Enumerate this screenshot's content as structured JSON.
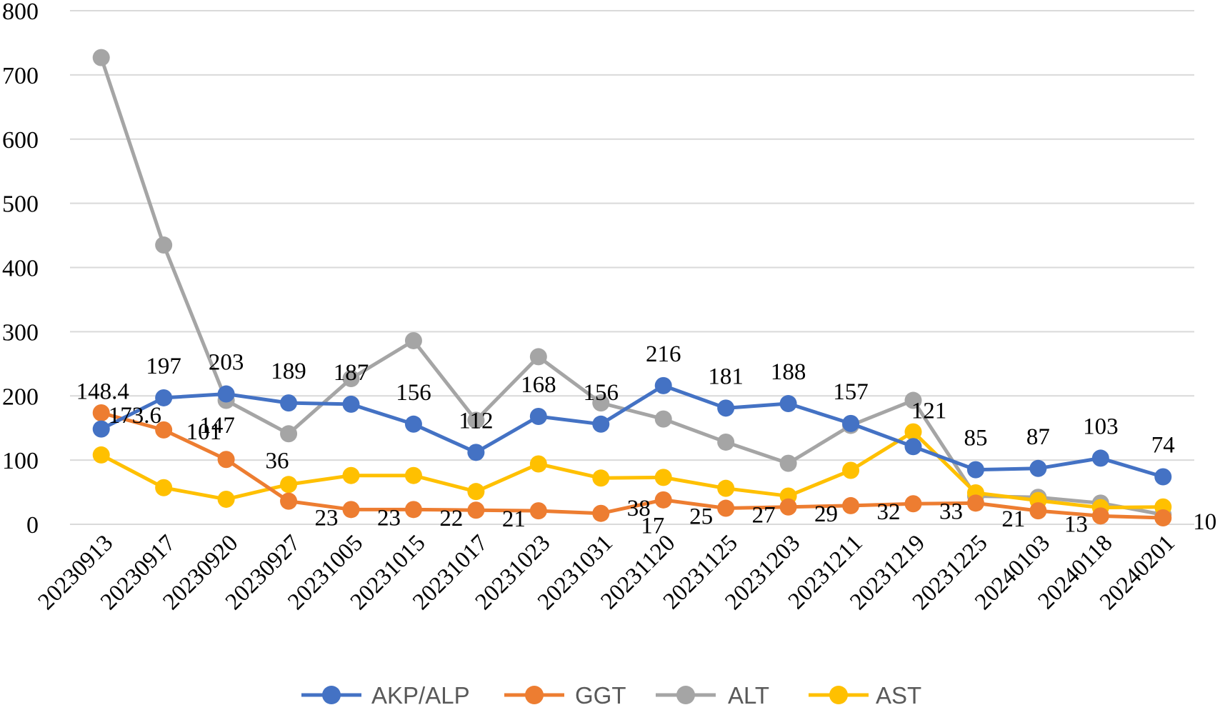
{
  "chart_data": {
    "type": "line",
    "title": "",
    "xlabel": "",
    "ylabel": "",
    "ylim": [
      0,
      800
    ],
    "yticks": [
      0,
      100,
      200,
      300,
      400,
      500,
      600,
      700,
      800
    ],
    "ytick_labels": [
      "0",
      "100",
      "200",
      "300",
      "400",
      "500",
      "600",
      "700",
      "800"
    ],
    "grid": true,
    "legend_position": "bottom",
    "categories": [
      "20230913",
      "20230917",
      "20230920",
      "20230927",
      "20231005",
      "20231015",
      "20231017",
      "20231023",
      "20231031",
      "20231120",
      "20231125",
      "20231203",
      "20231211",
      "20231219",
      "20231225",
      "20240103",
      "20240118",
      "20240201"
    ],
    "series": [
      {
        "name": "AKP/ALP",
        "color": "#4472c4",
        "values": [
          148.4,
          197,
          203,
          189,
          187,
          156,
          112,
          168,
          156,
          216,
          181,
          188,
          157,
          121,
          85,
          87,
          103,
          74
        ],
        "labels": [
          "148.4",
          "197",
          "203",
          "189",
          "187",
          "156",
          "112",
          "168",
          "156",
          "216",
          "181",
          "188",
          "157",
          "121",
          "85",
          "87",
          "103",
          "74"
        ]
      },
      {
        "name": "GGT",
        "color": "#ed7d31",
        "values": [
          173.6,
          147,
          101,
          36,
          23,
          23,
          22,
          21,
          17,
          38,
          25,
          27,
          29,
          32,
          33,
          21,
          13,
          10
        ],
        "labels": [
          "173.6",
          "147",
          "101",
          "36",
          "23",
          "23",
          "22",
          "21",
          "17",
          "38",
          "25",
          "27",
          "29",
          "32",
          "33",
          "21",
          "13",
          "10"
        ]
      },
      {
        "name": "ALT",
        "color": "#a5a5a5",
        "values": [
          727,
          435,
          193,
          141,
          227,
          286,
          162,
          261,
          189,
          164,
          128,
          95,
          154,
          193,
          44,
          42,
          33,
          15
        ],
        "labels": []
      },
      {
        "name": "AST",
        "color": "#ffc000",
        "values": [
          108,
          57,
          39,
          62,
          76,
          76,
          51,
          94,
          72,
          73,
          56,
          44,
          84,
          144,
          49,
          37,
          26,
          27
        ],
        "labels": []
      }
    ]
  }
}
